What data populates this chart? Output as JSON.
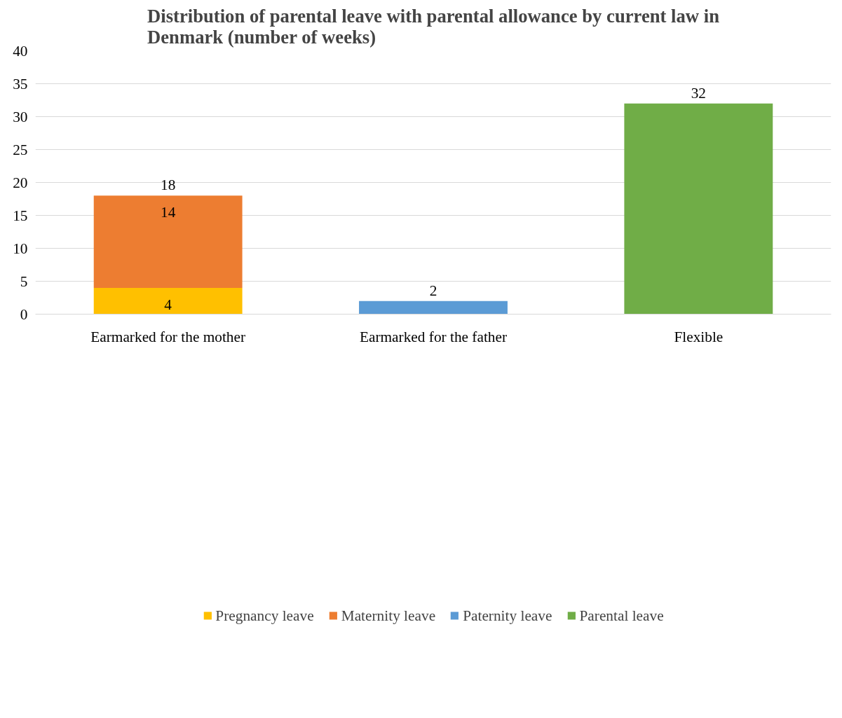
{
  "chart_data": {
    "type": "bar",
    "stacked": true,
    "title": "Distribution of parental leave with parental allowance by current law in Denmark (number of weeks)",
    "categories": [
      "Earmarked for the mother",
      "Earmarked for the father",
      "Flexible"
    ],
    "series": [
      {
        "name": "Pregnancy leave",
        "color": "#ffc000",
        "values": [
          4,
          null,
          null
        ]
      },
      {
        "name": "Maternity leave",
        "color": "#ed7d31",
        "values": [
          14,
          null,
          null
        ]
      },
      {
        "name": "Paternity leave",
        "color": "#5b9bd5",
        "values": [
          null,
          2,
          null
        ]
      },
      {
        "name": "Parental leave",
        "color": "#70ad47",
        "values": [
          null,
          null,
          32
        ]
      }
    ],
    "totals": [
      "18",
      null,
      null
    ],
    "data_labels": true,
    "ylim": [
      0,
      40
    ],
    "yticks": [
      0,
      5,
      10,
      15,
      20,
      25,
      30,
      35,
      40
    ],
    "grid": "y",
    "legend": "bottom"
  }
}
